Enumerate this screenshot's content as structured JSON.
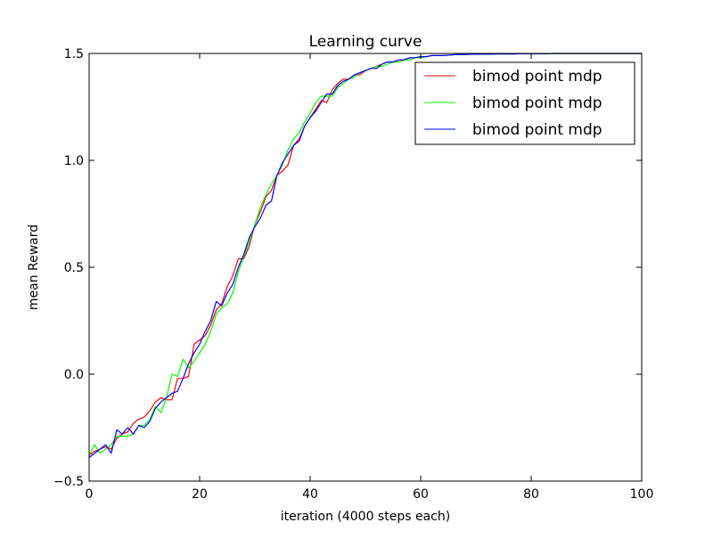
{
  "chart_data": {
    "type": "line",
    "title": "Learning curve",
    "xlabel": "iteration (4000 steps each)",
    "ylabel": "mean Reward",
    "xlim": [
      0,
      100
    ],
    "ylim": [
      -0.5,
      1.5
    ],
    "xticks": [
      0,
      20,
      40,
      60,
      80,
      100
    ],
    "xtick_labels": [
      "0",
      "20",
      "40",
      "60",
      "80",
      "100"
    ],
    "yticks": [
      -0.5,
      0.0,
      0.5,
      1.0,
      1.5
    ],
    "ytick_labels": [
      "−0.5",
      "0.0",
      "0.5",
      "1.0",
      "1.5"
    ],
    "grid": false,
    "legend_position": "top-right",
    "x": [
      0,
      1,
      2,
      3,
      4,
      5,
      6,
      7,
      8,
      9,
      10,
      11,
      12,
      13,
      14,
      15,
      16,
      17,
      18,
      19,
      20,
      21,
      22,
      23,
      24,
      25,
      26,
      27,
      28,
      29,
      30,
      31,
      32,
      33,
      34,
      35,
      36,
      37,
      38,
      39,
      40,
      41,
      42,
      43,
      44,
      45,
      46,
      47,
      48,
      49,
      50,
      51,
      52,
      53,
      54,
      55,
      56,
      57,
      58,
      59,
      60,
      61,
      62,
      63,
      64,
      65,
      66,
      67,
      68,
      69,
      70,
      71,
      72,
      73,
      74,
      75,
      76,
      77,
      78,
      79,
      80,
      81,
      82,
      83,
      84,
      85,
      86,
      87,
      88,
      89,
      90,
      91,
      92,
      93,
      94,
      95,
      96,
      97,
      98,
      99,
      100
    ],
    "series": [
      {
        "name": "bimod point mdp",
        "color": "#ff0000",
        "values": [
          -0.38,
          -0.36,
          -0.35,
          -0.34,
          -0.35,
          -0.3,
          -0.28,
          -0.27,
          -0.23,
          -0.21,
          -0.2,
          -0.17,
          -0.13,
          -0.11,
          -0.12,
          -0.12,
          -0.02,
          -0.02,
          -0.01,
          0.14,
          0.16,
          0.18,
          0.23,
          0.3,
          0.33,
          0.41,
          0.46,
          0.54,
          0.54,
          0.6,
          0.7,
          0.76,
          0.83,
          0.86,
          0.93,
          0.95,
          0.98,
          1.07,
          1.1,
          1.16,
          1.2,
          1.24,
          1.28,
          1.27,
          1.33,
          1.36,
          1.38,
          1.38,
          1.4,
          1.4,
          1.42,
          1.43,
          1.44,
          1.45,
          1.46,
          1.46,
          1.47,
          1.47,
          1.48,
          1.48,
          1.485,
          1.485,
          1.49,
          1.49,
          1.49,
          1.492,
          1.494,
          1.495,
          1.495,
          1.496,
          1.496,
          1.497,
          1.497,
          1.497,
          1.498,
          1.498,
          1.498,
          1.498,
          1.499,
          1.499,
          1.499,
          1.499,
          1.499,
          1.499,
          1.5,
          1.5,
          1.5,
          1.5,
          1.5,
          1.5,
          1.5,
          1.5,
          1.5,
          1.5,
          1.5,
          1.5,
          1.5,
          1.5,
          1.5,
          1.5,
          1.5
        ]
      },
      {
        "name": "bimod point mdp",
        "color": "#00ff00",
        "values": [
          -0.38,
          -0.33,
          -0.37,
          -0.35,
          -0.33,
          -0.29,
          -0.29,
          -0.29,
          -0.28,
          -0.24,
          -0.24,
          -0.21,
          -0.15,
          -0.18,
          -0.11,
          0.0,
          -0.01,
          0.07,
          0.03,
          0.06,
          0.1,
          0.14,
          0.2,
          0.28,
          0.31,
          0.33,
          0.38,
          0.48,
          0.55,
          0.62,
          0.7,
          0.78,
          0.84,
          0.89,
          0.93,
          0.98,
          1.05,
          1.1,
          1.13,
          1.18,
          1.22,
          1.27,
          1.3,
          1.3,
          1.3,
          1.34,
          1.36,
          1.38,
          1.39,
          1.41,
          1.42,
          1.43,
          1.44,
          1.44,
          1.45,
          1.46,
          1.46,
          1.47,
          1.47,
          1.48,
          1.48,
          1.485,
          1.49,
          1.49,
          1.49,
          1.492,
          1.494,
          1.495,
          1.495,
          1.496,
          1.496,
          1.497,
          1.497,
          1.497,
          1.498,
          1.498,
          1.498,
          1.498,
          1.499,
          1.499,
          1.499,
          1.499,
          1.499,
          1.499,
          1.5,
          1.5,
          1.5,
          1.5,
          1.5,
          1.5,
          1.5,
          1.5,
          1.5,
          1.5,
          1.5,
          1.5,
          1.5,
          1.5,
          1.5,
          1.5,
          1.5
        ]
      },
      {
        "name": "bimod point mdp",
        "color": "#0000ff",
        "values": [
          -0.39,
          -0.37,
          -0.35,
          -0.33,
          -0.37,
          -0.26,
          -0.28,
          -0.25,
          -0.28,
          -0.24,
          -0.25,
          -0.22,
          -0.16,
          -0.13,
          -0.11,
          -0.09,
          -0.08,
          -0.02,
          0.05,
          0.1,
          0.14,
          0.2,
          0.25,
          0.34,
          0.32,
          0.38,
          0.42,
          0.5,
          0.56,
          0.64,
          0.69,
          0.73,
          0.79,
          0.81,
          0.93,
          0.99,
          1.03,
          1.07,
          1.09,
          1.16,
          1.2,
          1.23,
          1.27,
          1.31,
          1.31,
          1.35,
          1.37,
          1.38,
          1.4,
          1.41,
          1.42,
          1.43,
          1.43,
          1.45,
          1.46,
          1.46,
          1.47,
          1.47,
          1.48,
          1.48,
          1.485,
          1.485,
          1.49,
          1.49,
          1.49,
          1.492,
          1.494,
          1.495,
          1.495,
          1.496,
          1.496,
          1.497,
          1.497,
          1.497,
          1.498,
          1.498,
          1.498,
          1.498,
          1.499,
          1.499,
          1.499,
          1.499,
          1.499,
          1.499,
          1.5,
          1.5,
          1.5,
          1.5,
          1.5,
          1.5,
          1.5,
          1.5,
          1.5,
          1.5,
          1.5,
          1.5,
          1.5,
          1.5,
          1.5,
          1.5,
          1.5
        ]
      }
    ]
  }
}
